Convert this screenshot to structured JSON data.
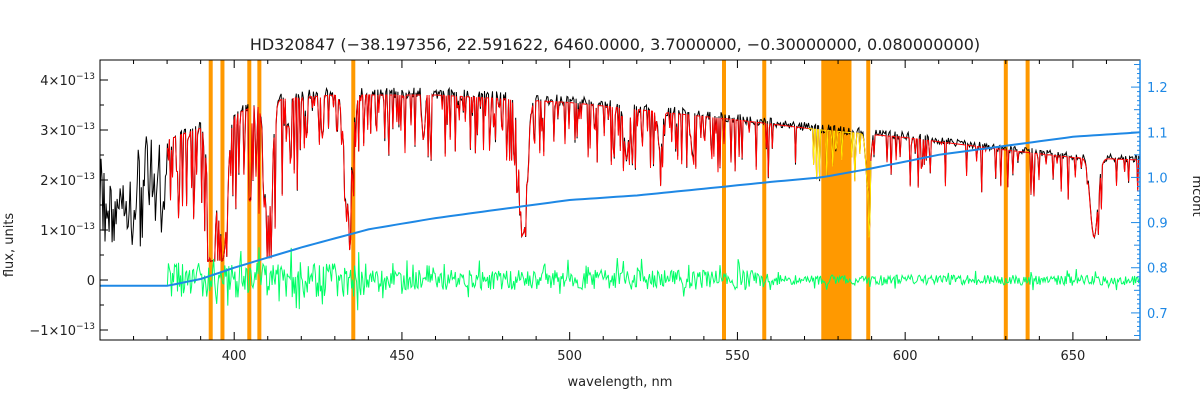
{
  "chart_data": {
    "type": "line",
    "title": "HD320847    (−38.197356, 22.591622, 6460.0000, 3.7000000, −0.30000000, 0.080000000)",
    "xlabel": "wavelength, nm",
    "ylabel": "flux, units",
    "y2label": "mcont",
    "xlim": [
      360,
      670
    ],
    "ylim": [
      -1.2e-13,
      4.4e-13
    ],
    "y2lim": [
      0.64,
      1.26
    ],
    "x_ticks": [
      {
        "value": 400,
        "label": "400"
      },
      {
        "value": 450,
        "label": "450"
      },
      {
        "value": 500,
        "label": "500"
      },
      {
        "value": 550,
        "label": "550"
      },
      {
        "value": 600,
        "label": "600"
      },
      {
        "value": 650,
        "label": "650"
      }
    ],
    "y_ticks": [
      {
        "value": -1e-13,
        "mant": "−1×10",
        "exp": "−13"
      },
      {
        "value": 0,
        "mant": "0",
        "exp": ""
      },
      {
        "value": 1e-13,
        "mant": "1×10",
        "exp": "−13"
      },
      {
        "value": 2e-13,
        "mant": "2×10",
        "exp": "−13"
      },
      {
        "value": 3e-13,
        "mant": "3×10",
        "exp": "−13"
      },
      {
        "value": 4e-13,
        "mant": "4×10",
        "exp": "−13"
      }
    ],
    "y2_ticks": [
      {
        "value": 0.7,
        "label": "0.7"
      },
      {
        "value": 0.8,
        "label": "0.8"
      },
      {
        "value": 0.9,
        "label": "0.9"
      },
      {
        "value": 1.0,
        "label": "1.0"
      },
      {
        "value": 1.1,
        "label": "1.1"
      },
      {
        "value": 1.2,
        "label": "1.2"
      }
    ],
    "masked_lines_nm": [
      393,
      396.5,
      404.5,
      407.5,
      435.5,
      546,
      558,
      589,
      630,
      636.5
    ],
    "masked_band_nm": [
      575,
      584
    ],
    "absorption_lines": [
      {
        "x": 393.4,
        "depth": 0.85
      },
      {
        "x": 396.8,
        "depth": 0.85
      },
      {
        "x": 410.2,
        "depth": 0.65
      },
      {
        "x": 434.0,
        "depth": 0.6
      },
      {
        "x": 486.1,
        "depth": 0.75
      },
      {
        "x": 516.9,
        "depth": 0.3
      },
      {
        "x": 527.0,
        "depth": 0.25
      },
      {
        "x": 589.0,
        "depth": 0.4
      },
      {
        "x": 656.3,
        "depth": 0.65
      }
    ],
    "continuum_flux": [
      [
        360,
        2.2e-13
      ],
      [
        380,
        2.8e-13
      ],
      [
        400,
        3.3e-13
      ],
      [
        410,
        3.6e-13
      ],
      [
        430,
        3.7e-13
      ],
      [
        460,
        3.7e-13
      ],
      [
        500,
        3.55e-13
      ],
      [
        550,
        3.2e-13
      ],
      [
        575,
        3e-13
      ],
      [
        600,
        2.85e-13
      ],
      [
        630,
        2.6e-13
      ],
      [
        650,
        2.45e-13
      ],
      [
        670,
        2.4e-13
      ]
    ],
    "mcont": [
      [
        360,
        0.76
      ],
      [
        380,
        0.76
      ],
      [
        390,
        0.775
      ],
      [
        400,
        0.8
      ],
      [
        420,
        0.845
      ],
      [
        440,
        0.885
      ],
      [
        460,
        0.91
      ],
      [
        480,
        0.93
      ],
      [
        500,
        0.95
      ],
      [
        520,
        0.96
      ],
      [
        540,
        0.975
      ],
      [
        560,
        0.99
      ],
      [
        575,
        1.0
      ],
      [
        590,
        1.02
      ],
      [
        610,
        1.05
      ],
      [
        630,
        1.07
      ],
      [
        650,
        1.09
      ],
      [
        670,
        1.1
      ]
    ],
    "series": [
      {
        "key": "observed",
        "color": "#000000",
        "x_start": 360,
        "x_end": 670
      },
      {
        "key": "model",
        "color": "#ff0000",
        "x_start": 380,
        "x_end": 670
      },
      {
        "key": "residuals",
        "color": "#00ff66",
        "x_start": 380,
        "x_end": 670
      },
      {
        "key": "mcont",
        "color": "#1e88e5",
        "x_start": 360,
        "x_end": 670
      }
    ],
    "colors": {
      "mask": "#ff9900",
      "masked_region": "#ffee00",
      "right_axis": "#1e88e5"
    },
    "grid": false
  }
}
